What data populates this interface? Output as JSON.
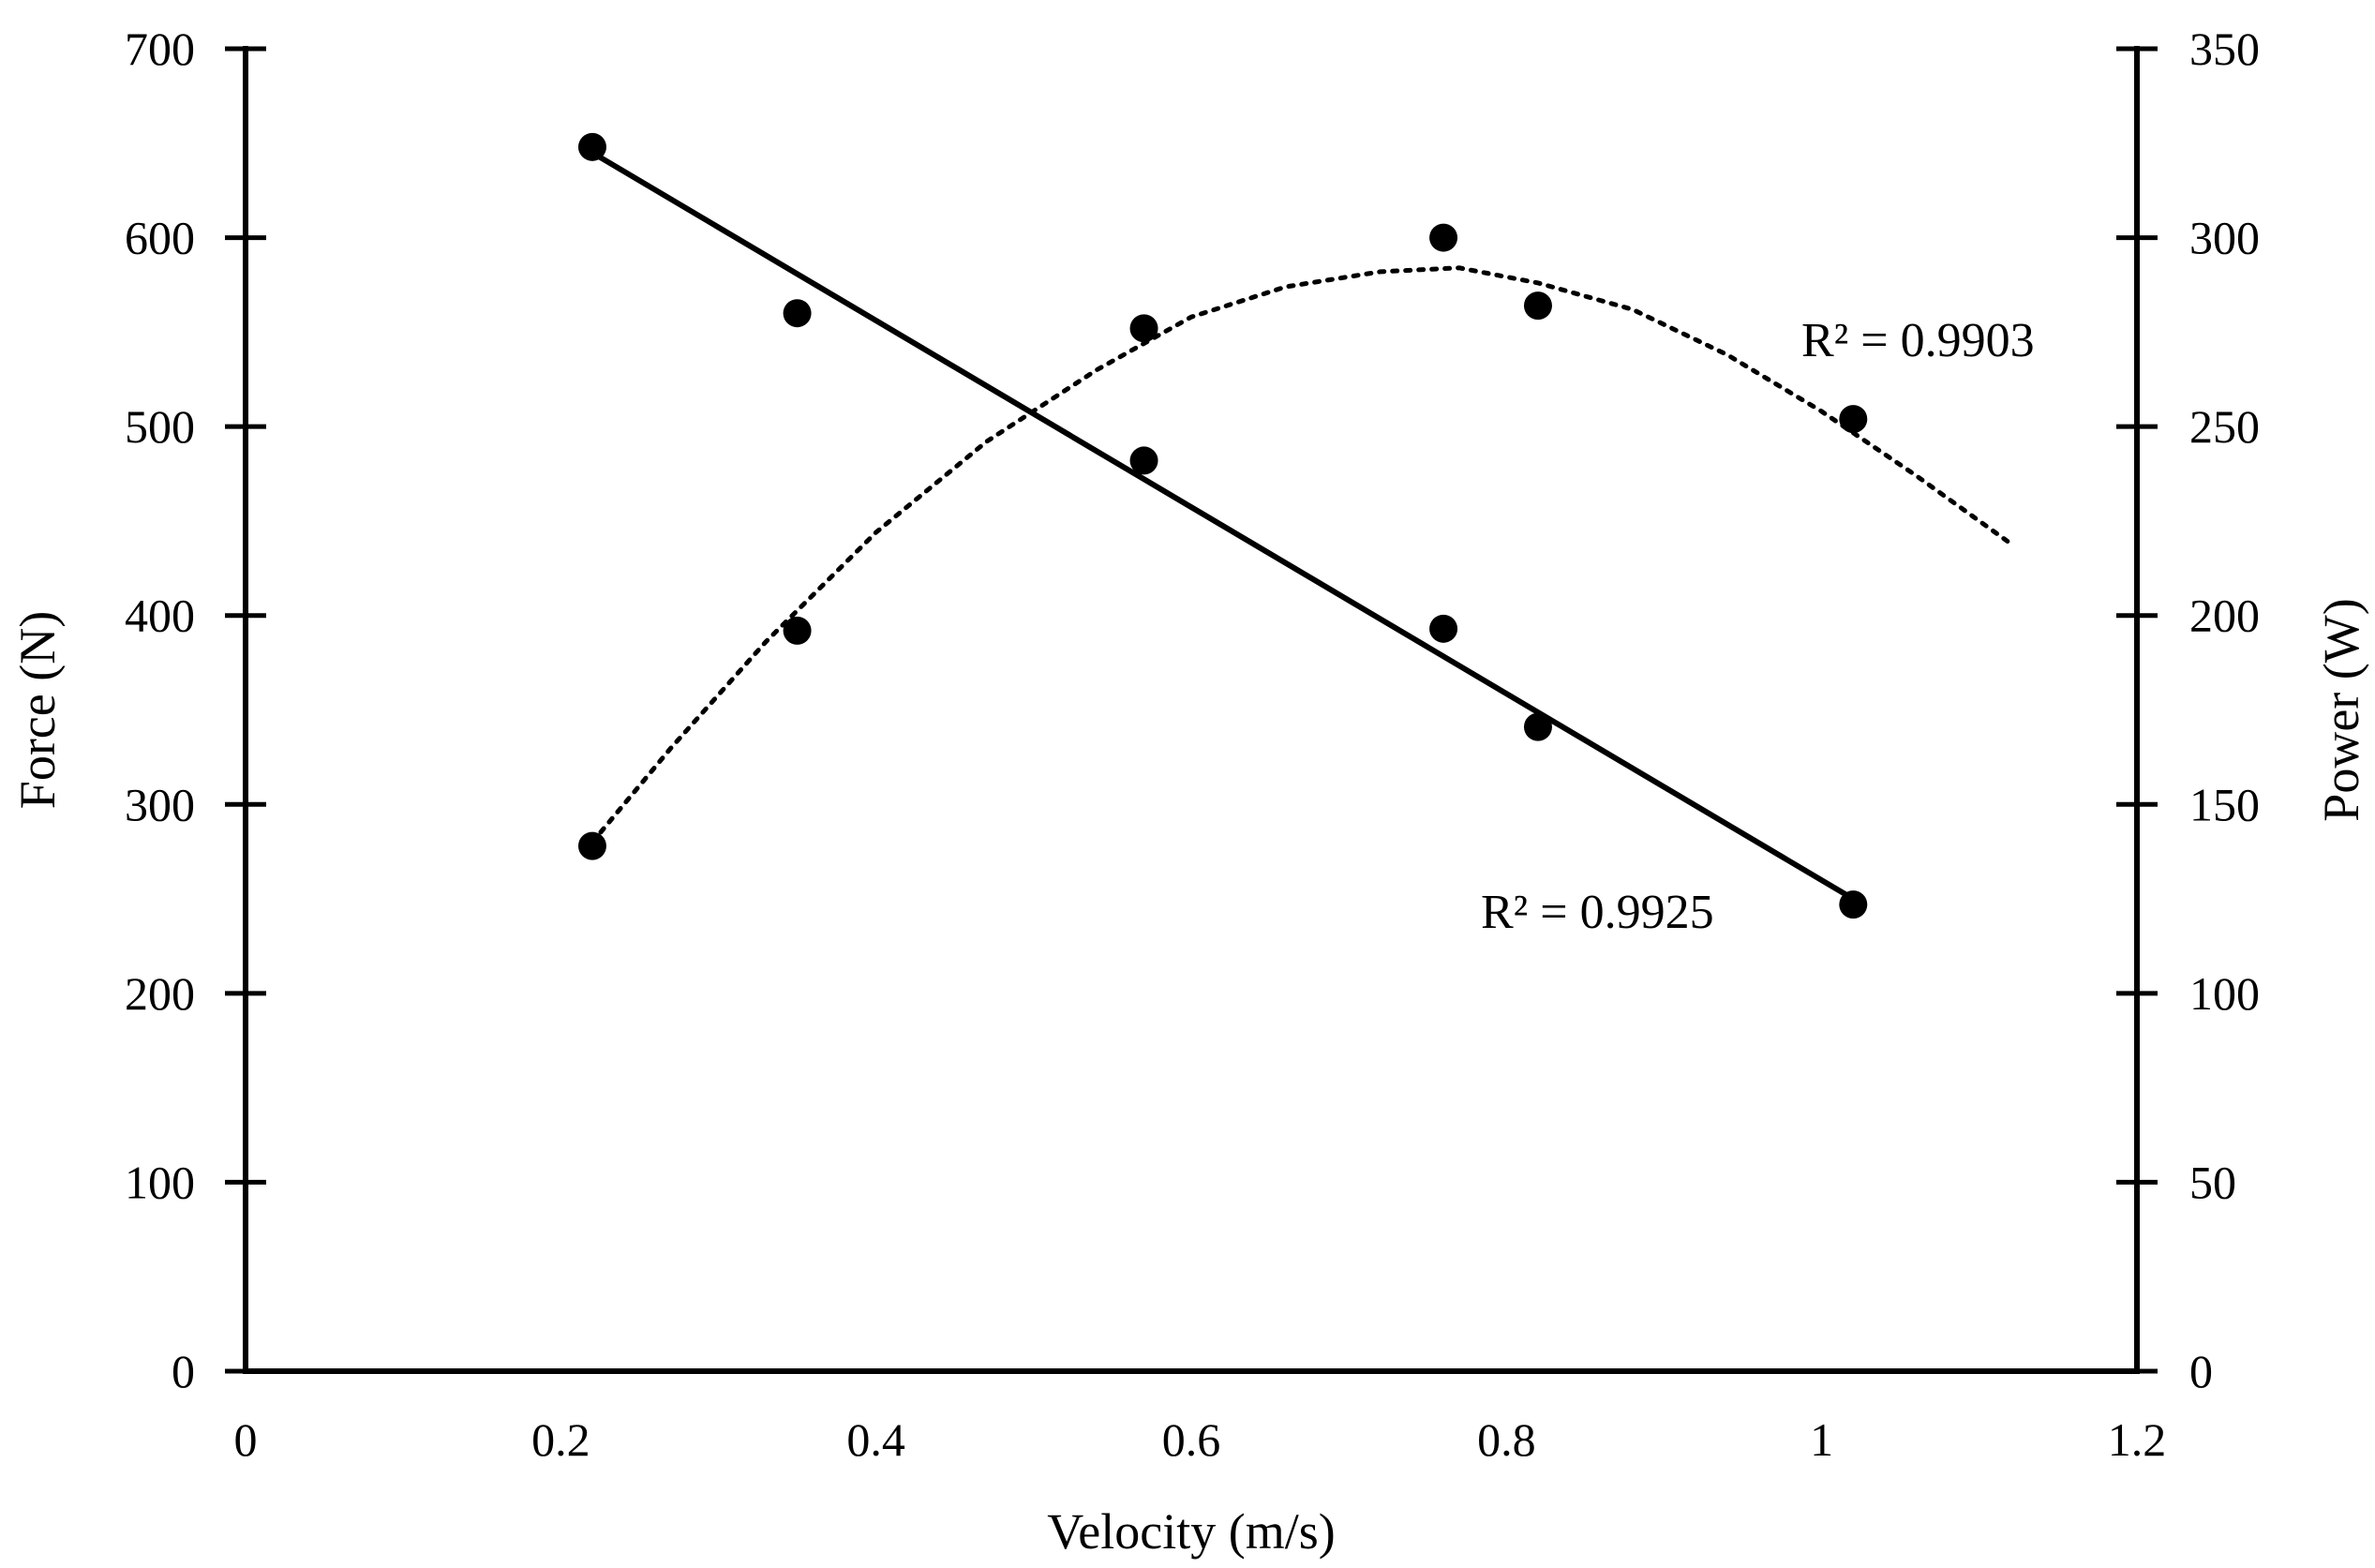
{
  "chart_data": {
    "type": "scatter",
    "xlabel": "Velocity (m/s)",
    "ylabel": "Force (N)",
    "y2label": "Power (W)",
    "xlim": [
      0,
      1.2
    ],
    "ylim": [
      0,
      700
    ],
    "y2lim": [
      0,
      350
    ],
    "x_ticks": [
      "0",
      "0.2",
      "0.4",
      "0.6",
      "0.8",
      "1",
      "1.2"
    ],
    "y_ticks": [
      "0",
      "100",
      "200",
      "300",
      "400",
      "500",
      "600",
      "700"
    ],
    "y2_ticks": [
      "0",
      "50",
      "100",
      "150",
      "200",
      "250",
      "300",
      "350"
    ],
    "grid": false,
    "series": [
      {
        "axis": "left",
        "marker": "circle",
        "trendline": "linear",
        "points": [
          {
            "x": 0.22,
            "y": 648
          },
          {
            "x": 0.35,
            "y": 560
          },
          {
            "x": 0.57,
            "y": 482
          },
          {
            "x": 0.76,
            "y": 393
          },
          {
            "x": 0.82,
            "y": 341
          },
          {
            "x": 1.02,
            "y": 247
          }
        ],
        "trend_points": [
          {
            "x": 0.22,
            "y": 645
          },
          {
            "x": 1.02,
            "y": 250
          }
        ],
        "r2_label": "R² = 0.9925"
      },
      {
        "axis": "right",
        "marker": "circle",
        "trendline": "polynomial",
        "points": [
          {
            "x": 0.22,
            "y": 139
          },
          {
            "x": 0.35,
            "y": 196
          },
          {
            "x": 0.57,
            "y": 276
          },
          {
            "x": 0.76,
            "y": 300
          },
          {
            "x": 0.82,
            "y": 282
          },
          {
            "x": 1.02,
            "y": 252
          }
        ],
        "trend_points": [
          {
            "x": 0.22,
            "y": 140
          },
          {
            "x": 0.27,
            "y": 165
          },
          {
            "x": 0.33,
            "y": 193
          },
          {
            "x": 0.4,
            "y": 222
          },
          {
            "x": 0.47,
            "y": 246
          },
          {
            "x": 0.54,
            "y": 265
          },
          {
            "x": 0.6,
            "y": 279
          },
          {
            "x": 0.66,
            "y": 287
          },
          {
            "x": 0.72,
            "y": 291
          },
          {
            "x": 0.77,
            "y": 292
          },
          {
            "x": 0.82,
            "y": 288
          },
          {
            "x": 0.88,
            "y": 281
          },
          {
            "x": 0.94,
            "y": 269
          },
          {
            "x": 1.0,
            "y": 254
          },
          {
            "x": 1.06,
            "y": 237
          },
          {
            "x": 1.12,
            "y": 219
          }
        ],
        "r2_label": "R² = 0.9903"
      }
    ]
  }
}
